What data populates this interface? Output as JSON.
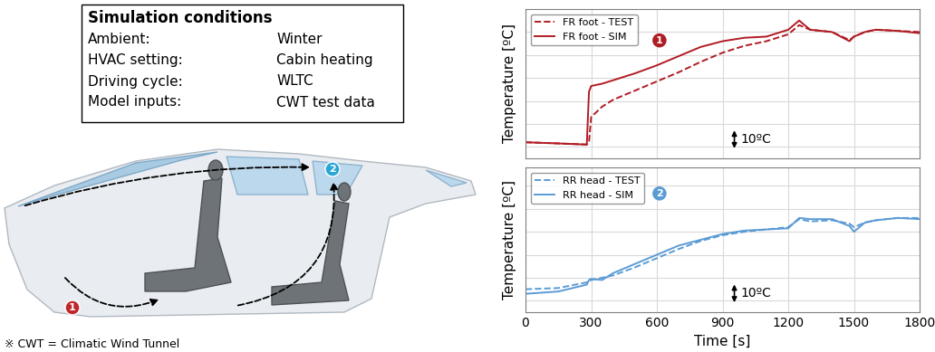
{
  "conditions": {
    "title": "Simulation conditions",
    "rows": [
      [
        "Ambient:",
        "Winter"
      ],
      [
        "HVAC setting:",
        "Cabin heating"
      ],
      [
        "Driving cycle:",
        "WLTC"
      ],
      [
        "Model inputs:",
        "CWT test data"
      ]
    ]
  },
  "diagram": {
    "markers": [
      {
        "label": "1",
        "color": "#c0272d"
      },
      {
        "label": "2",
        "color": "#2aa6d6"
      }
    ]
  },
  "footnote": "※ CWT = Climatic Wind Tunnel",
  "chart_data": [
    {
      "type": "line",
      "ylabel": "Temperature [ºC]",
      "annotations": [
        "1"
      ],
      "scale_bar": {
        "value": 10,
        "label": "10ºC"
      },
      "x": [
        0,
        150,
        280,
        290,
        300,
        350,
        400,
        500,
        600,
        700,
        800,
        900,
        1000,
        1100,
        1200,
        1250,
        1300,
        1400,
        1480,
        1500,
        1550,
        1600,
        1700,
        1800
      ],
      "xlim": [
        0,
        1800
      ],
      "xticks": [
        0,
        300,
        600,
        900,
        1200,
        1500,
        1800
      ],
      "ylim": [
        -15,
        50
      ],
      "yticks": [
        -10,
        0,
        10,
        20,
        30,
        40,
        50
      ],
      "grid": true,
      "legend": "upper left",
      "tick_labels": false,
      "series": [
        {
          "name": "FR foot - TEST",
          "color": "#b01c24",
          "line_style": "dashed",
          "values": [
            -8,
            -8.5,
            -9,
            -8,
            3,
            7.5,
            10.5,
            14.5,
            18.5,
            22.5,
            27,
            31,
            34,
            36,
            39,
            43,
            41,
            40,
            36.5,
            38,
            40,
            41,
            40.5,
            40
          ]
        },
        {
          "name": "FR foot - SIM",
          "color": "#b01c24",
          "line_style": "solid",
          "values": [
            -8,
            -8.5,
            -9,
            14,
            16.5,
            17.5,
            19,
            22,
            25.5,
            29.5,
            33.5,
            36,
            37.5,
            38,
            41,
            45,
            41,
            40,
            36,
            38,
            40,
            41,
            40.5,
            39.5
          ]
        }
      ]
    },
    {
      "type": "line",
      "xlabel": "Time [s]",
      "ylabel": "Temperature [ºC]",
      "annotations": [
        "2"
      ],
      "scale_bar": {
        "value": 10,
        "label": "10ºC"
      },
      "x": [
        0,
        150,
        280,
        290,
        300,
        350,
        400,
        500,
        600,
        700,
        800,
        900,
        1000,
        1100,
        1200,
        1250,
        1300,
        1400,
        1480,
        1500,
        1550,
        1600,
        1700,
        1800
      ],
      "xlim": [
        0,
        1800
      ],
      "xticks": [
        0,
        300,
        600,
        900,
        1200,
        1500,
        1800
      ],
      "ylim": [
        -15,
        48
      ],
      "yticks": [
        -10,
        0,
        10,
        20,
        30,
        40
      ],
      "grid": true,
      "legend": "upper left",
      "tick_labels": "x",
      "series": [
        {
          "name": "RR head - TEST",
          "color": "#5b9bd5",
          "line_style": "dashed",
          "values": [
            -5,
            -4.5,
            -2,
            -1.5,
            -1,
            0,
            1,
            4.5,
            8.5,
            12.5,
            16,
            18.5,
            20,
            21,
            22,
            25.5,
            24.5,
            25,
            23.5,
            22,
            24,
            25,
            26,
            26
          ]
        },
        {
          "name": "RR head - SIM",
          "color": "#5b9bd5",
          "line_style": "solid",
          "values": [
            -7,
            -6,
            -3,
            -1,
            -0.5,
            -1,
            2,
            6,
            10,
            14,
            16.5,
            19,
            20.5,
            21,
            21.5,
            26,
            25.5,
            25.5,
            22.5,
            20,
            24,
            25,
            26,
            25.5
          ]
        }
      ]
    }
  ]
}
